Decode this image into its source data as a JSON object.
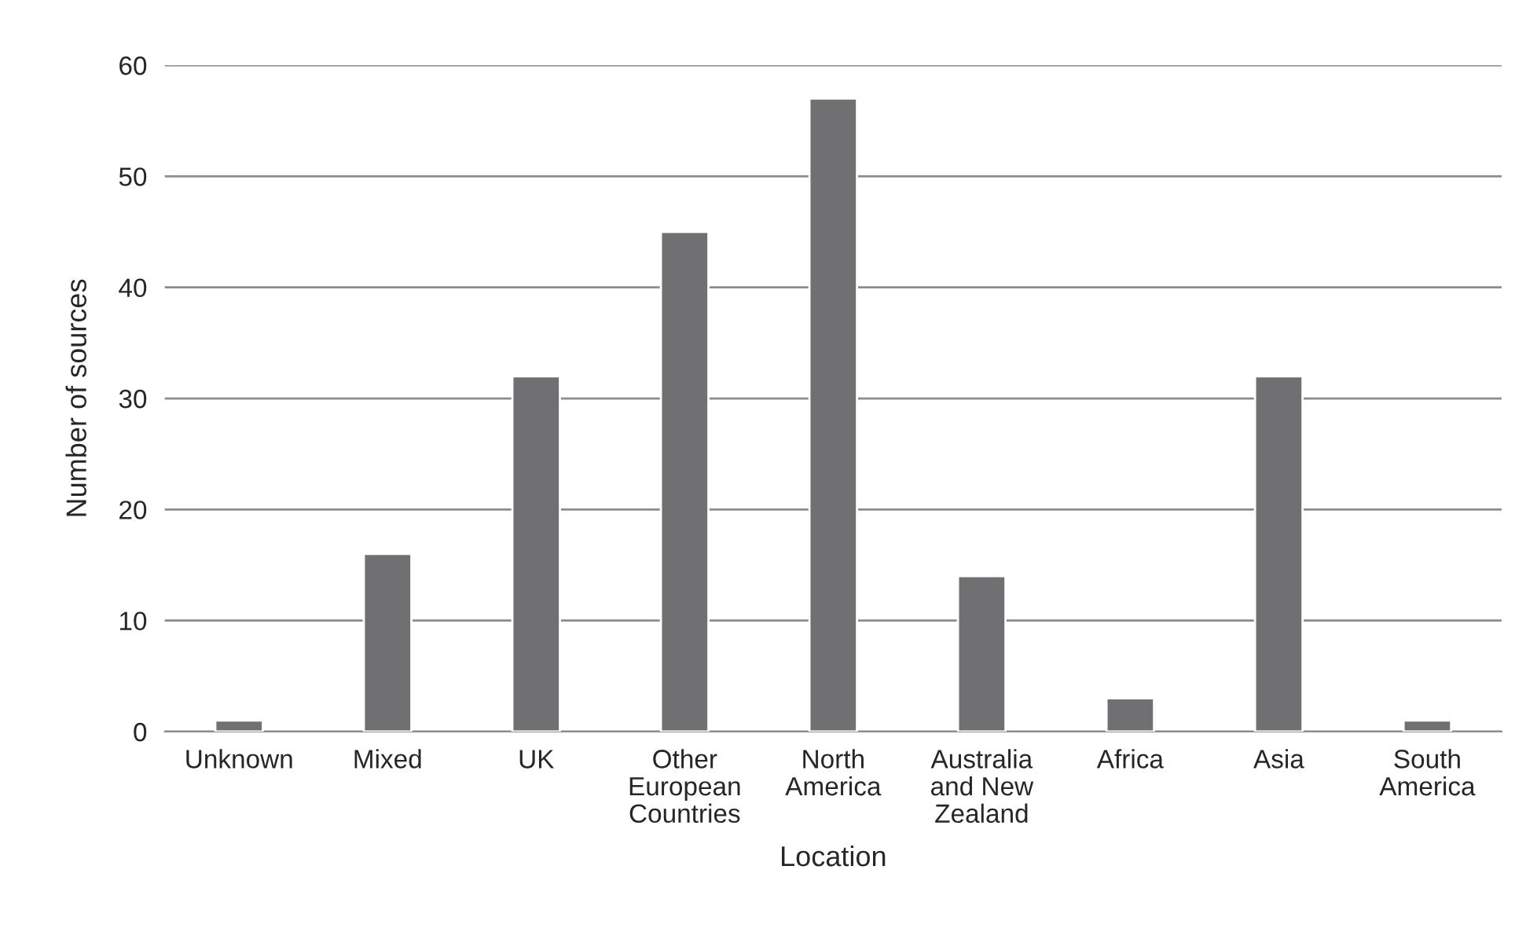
{
  "chart_data": {
    "type": "bar",
    "xlabel": "Location",
    "ylabel": "Number of sources",
    "categories": [
      "Unknown",
      "Mixed",
      "UK",
      "Other\nEuropean\nCountries",
      "North\nAmerica",
      "Australia\nand New\nZealand",
      "Africa",
      "Asia",
      "South\nAmerica"
    ],
    "series": [
      {
        "color": "#707073",
        "values": [
          1,
          16,
          32,
          45,
          57,
          14,
          3,
          32,
          1
        ]
      }
    ],
    "ylim": [
      0,
      60
    ],
    "yticks": [
      0,
      10,
      20,
      30,
      40,
      50,
      60
    ],
    "grid": "y",
    "legend": false
  }
}
